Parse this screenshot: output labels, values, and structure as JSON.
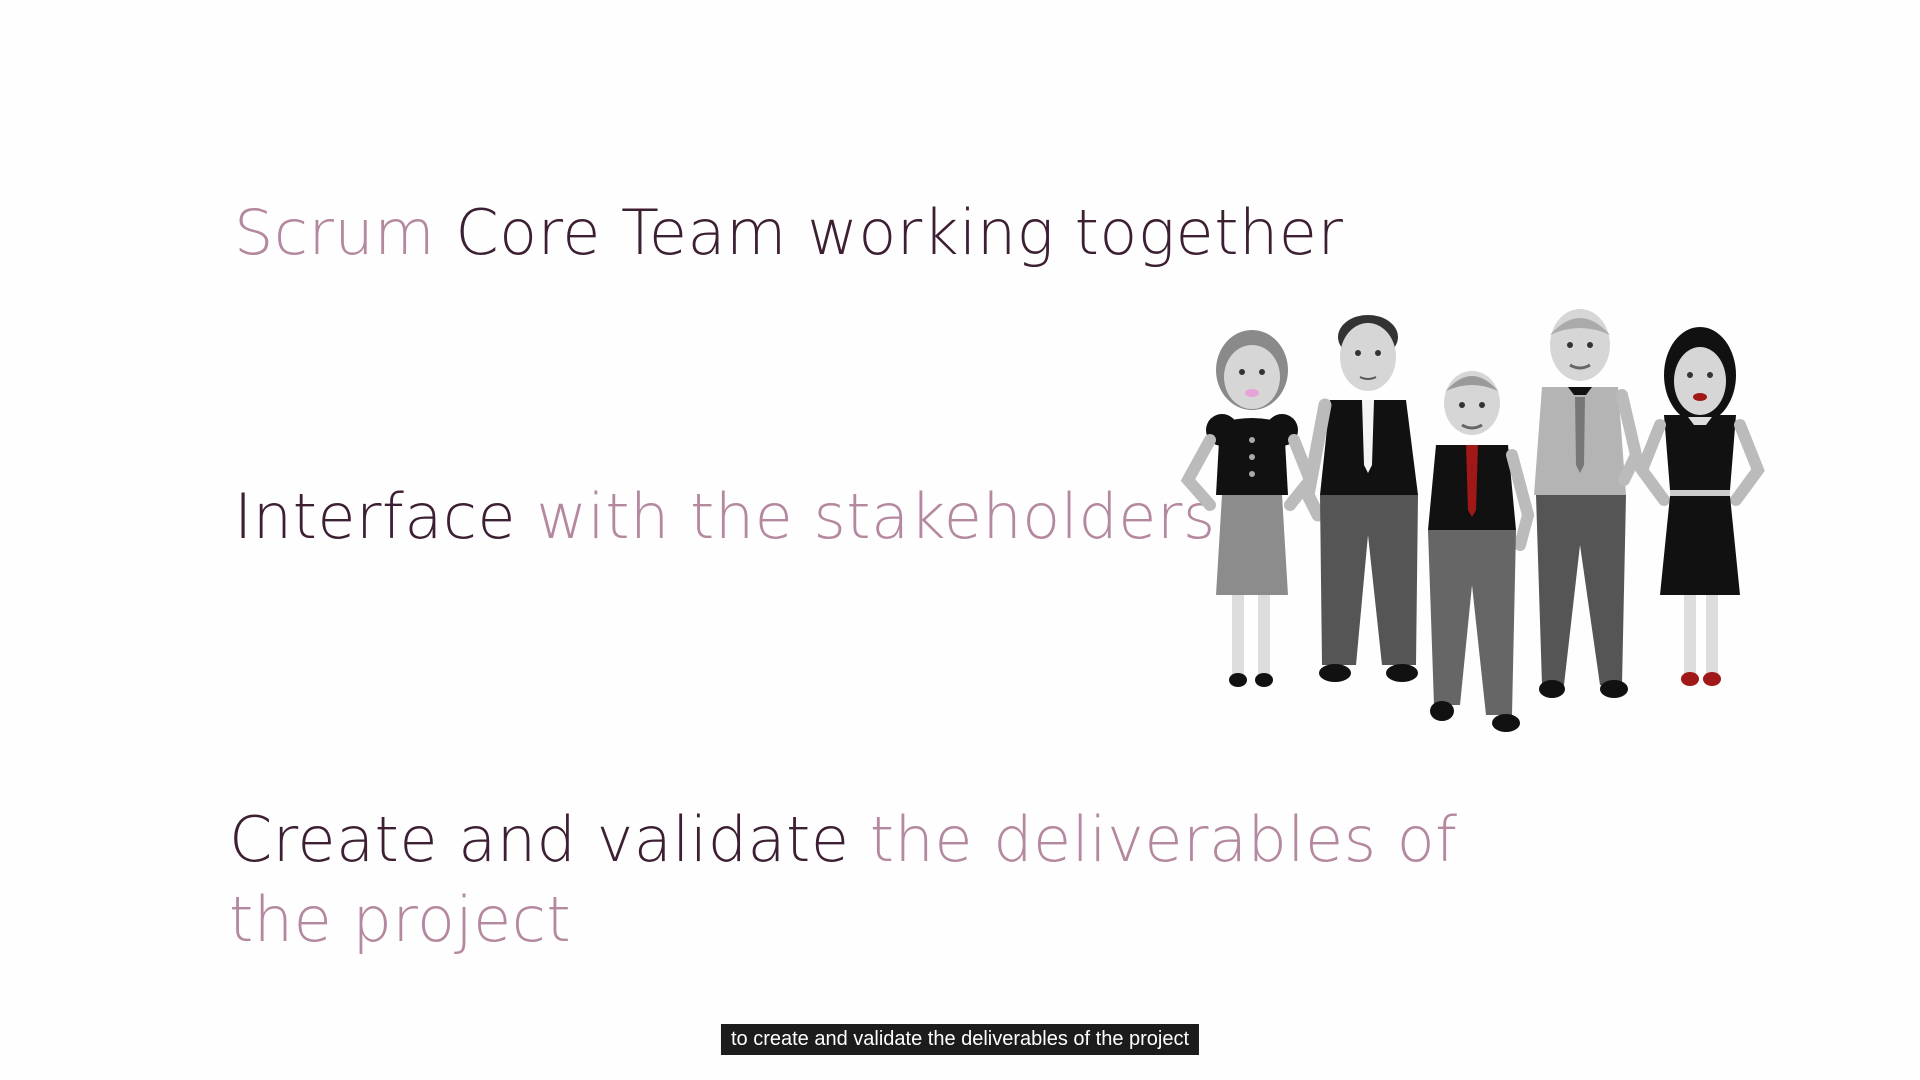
{
  "slide": {
    "line1": {
      "part1": "Scrum",
      "part2": "Core Team working together"
    },
    "line2": {
      "part1": "Interface",
      "part2": "with the stakeholders"
    },
    "line3": {
      "part1": "Create and validate",
      "part2": "the deliverables of the project"
    }
  },
  "caption": "to create and validate the deliverables of the project",
  "colors": {
    "dark_text": "#3d1f33",
    "light_text": "#b4889f",
    "caption_bg": "#1c1c1c"
  },
  "illustration": {
    "icon": "team-of-five-people-icon"
  }
}
